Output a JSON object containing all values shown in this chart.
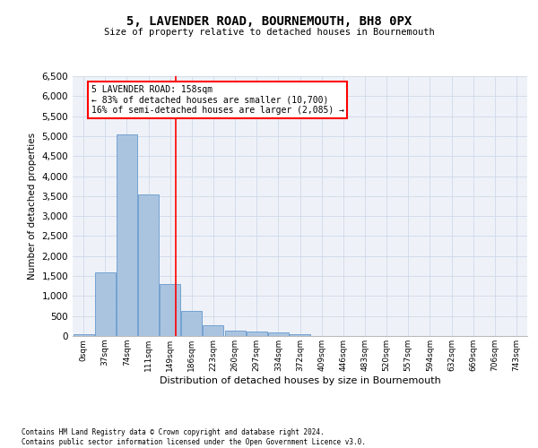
{
  "title": "5, LAVENDER ROAD, BOURNEMOUTH, BH8 0PX",
  "subtitle": "Size of property relative to detached houses in Bournemouth",
  "xlabel": "Distribution of detached houses by size in Bournemouth",
  "ylabel": "Number of detached properties",
  "categories": [
    "0sqm",
    "37sqm",
    "74sqm",
    "111sqm",
    "149sqm",
    "186sqm",
    "223sqm",
    "260sqm",
    "297sqm",
    "334sqm",
    "372sqm",
    "409sqm",
    "446sqm",
    "483sqm",
    "520sqm",
    "557sqm",
    "594sqm",
    "632sqm",
    "669sqm",
    "706sqm",
    "743sqm"
  ],
  "bar_heights": [
    50,
    1600,
    5050,
    3550,
    1300,
    620,
    280,
    130,
    110,
    90,
    50,
    10,
    0,
    0,
    0,
    0,
    0,
    0,
    0,
    0,
    0
  ],
  "bar_color": "#aac4e0",
  "bar_edge_color": "#6699cc",
  "grid_color": "#d0d8e8",
  "background_color": "#eef2f8",
  "annotation_box_text": "5 LAVENDER ROAD: 158sqm\n← 83% of detached houses are smaller (10,700)\n16% of semi-detached houses are larger (2,085) →",
  "annotation_box_color": "red",
  "vline_x": 4.28,
  "ylim": [
    0,
    6500
  ],
  "yticks": [
    0,
    500,
    1000,
    1500,
    2000,
    2500,
    3000,
    3500,
    4000,
    4500,
    5000,
    5500,
    6000,
    6500
  ],
  "footer_line1": "Contains HM Land Registry data © Crown copyright and database right 2024.",
  "footer_line2": "Contains public sector information licensed under the Open Government Licence v3.0."
}
